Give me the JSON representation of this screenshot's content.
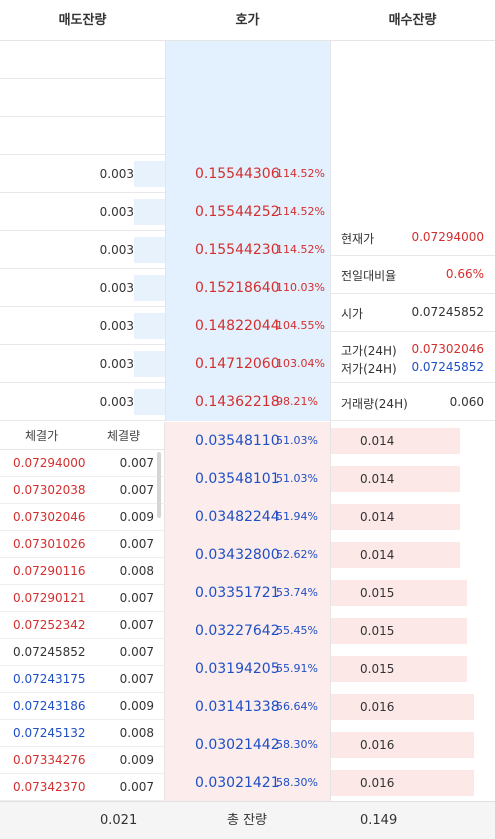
{
  "header": {
    "sell": "매도잔량",
    "price": "호가",
    "buy": "매수잔량"
  },
  "asks": [
    {
      "qty": "",
      "price": "",
      "pct": ""
    },
    {
      "qty": "",
      "price": "",
      "pct": ""
    },
    {
      "qty": "",
      "price": "",
      "pct": ""
    },
    {
      "qty": "0.003",
      "price": "0.15544306",
      "pct": "114.52%"
    },
    {
      "qty": "0.003",
      "price": "0.15544252",
      "pct": "114.52%"
    },
    {
      "qty": "0.003",
      "price": "0.15544230",
      "pct": "114.52%"
    },
    {
      "qty": "0.003",
      "price": "0.15218640",
      "pct": "110.03%"
    },
    {
      "qty": "0.003",
      "price": "0.14822044",
      "pct": "104.55%"
    },
    {
      "qty": "0.003",
      "price": "0.14712060",
      "pct": "103.04%"
    },
    {
      "qty": "0.003",
      "price": "0.14362218",
      "pct": "98.21%"
    }
  ],
  "bids": [
    {
      "qty": "0.014",
      "price": "0.03548110",
      "pct": "51.03%"
    },
    {
      "qty": "0.014",
      "price": "0.03548101",
      "pct": "51.03%"
    },
    {
      "qty": "0.014",
      "price": "0.03482244",
      "pct": "51.94%"
    },
    {
      "qty": "0.014",
      "price": "0.03432800",
      "pct": "52.62%"
    },
    {
      "qty": "0.015",
      "price": "0.03351721",
      "pct": "53.74%"
    },
    {
      "qty": "0.015",
      "price": "0.03227642",
      "pct": "55.45%"
    },
    {
      "qty": "0.015",
      "price": "0.03194205",
      "pct": "55.91%"
    },
    {
      "qty": "0.016",
      "price": "0.03141338",
      "pct": "56.64%"
    },
    {
      "qty": "0.016",
      "price": "0.03021442",
      "pct": "58.30%"
    },
    {
      "qty": "0.016",
      "price": "0.03021421",
      "pct": "58.30%"
    }
  ],
  "info": {
    "current_label": "현재가",
    "current_value": "0.07294000",
    "change_label": "전일대비율",
    "change_value": "0.66%",
    "open_label": "시가",
    "open_value": "0.07245852",
    "high_label": "고가(24H)",
    "high_value": "0.07302046",
    "low_label": "저가(24H)",
    "low_value": "0.07245852",
    "volume_label": "거래량(24H)",
    "volume_value": "0.060"
  },
  "trades": {
    "price_header": "체결가",
    "qty_header": "체결량",
    "rows": [
      {
        "price": "0.07294000",
        "qty": "0.007",
        "color": "red"
      },
      {
        "price": "0.07302038",
        "qty": "0.007",
        "color": "red"
      },
      {
        "price": "0.07302046",
        "qty": "0.009",
        "color": "red"
      },
      {
        "price": "0.07301026",
        "qty": "0.007",
        "color": "red"
      },
      {
        "price": "0.07290116",
        "qty": "0.008",
        "color": "red"
      },
      {
        "price": "0.07290121",
        "qty": "0.007",
        "color": "red"
      },
      {
        "price": "0.07252342",
        "qty": "0.007",
        "color": "red"
      },
      {
        "price": "0.07245852",
        "qty": "0.007",
        "color": "black"
      },
      {
        "price": "0.07243175",
        "qty": "0.007",
        "color": "blue"
      },
      {
        "price": "0.07243186",
        "qty": "0.009",
        "color": "blue"
      },
      {
        "price": "0.07245132",
        "qty": "0.008",
        "color": "blue"
      },
      {
        "price": "0.07334276",
        "qty": "0.009",
        "color": "red"
      },
      {
        "price": "0.07342370",
        "qty": "0.007",
        "color": "red"
      }
    ]
  },
  "footer": {
    "total_sell": "0.021",
    "label": "총 잔량",
    "total_buy": "0.149"
  },
  "colors": {
    "up": "#d32f2f",
    "down": "#1e4fc4",
    "ask_bg": "#e3f0fd",
    "bid_bg": "#fdecec"
  }
}
